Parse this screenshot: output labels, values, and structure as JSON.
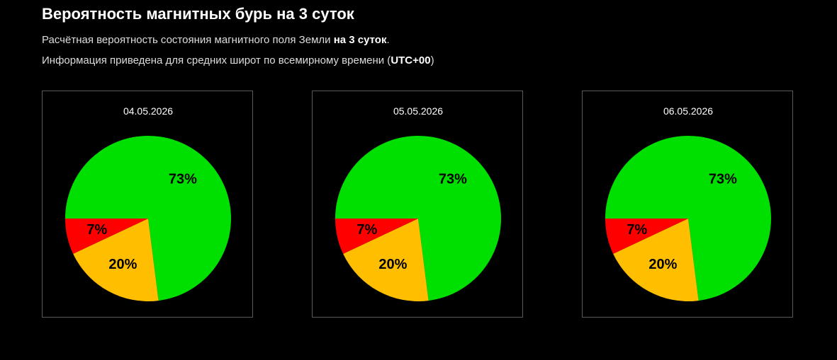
{
  "page": {
    "title": "Вероятность магнитных бурь на 3 суток",
    "description_line1_prefix": "Расчётная вероятность состояния магнитного поля Земли ",
    "description_line1_bold": "на 3 суток",
    "description_line1_suffix": ".",
    "description_line2_prefix": "Информация приведена для средних широт по всемирному времени (",
    "description_line2_bold": "UTC+00",
    "description_line2_suffix": ")"
  },
  "chart_data": [
    {
      "type": "pie",
      "title": "04.05.2026",
      "slices": [
        {
          "value": 73,
          "label": "73%",
          "color": "#00e000"
        },
        {
          "value": 20,
          "label": "20%",
          "color": "#ffbf00"
        },
        {
          "value": 7,
          "label": "7%",
          "color": "#ff0000"
        }
      ]
    },
    {
      "type": "pie",
      "title": "05.05.2026",
      "slices": [
        {
          "value": 73,
          "label": "73%",
          "color": "#00e000"
        },
        {
          "value": 20,
          "label": "20%",
          "color": "#ffbf00"
        },
        {
          "value": 7,
          "label": "7%",
          "color": "#ff0000"
        }
      ]
    },
    {
      "type": "pie",
      "title": "06.05.2026",
      "slices": [
        {
          "value": 73,
          "label": "73%",
          "color": "#00e000"
        },
        {
          "value": 20,
          "label": "20%",
          "color": "#ffbf00"
        },
        {
          "value": 7,
          "label": "7%",
          "color": "#ff0000"
        }
      ]
    }
  ]
}
